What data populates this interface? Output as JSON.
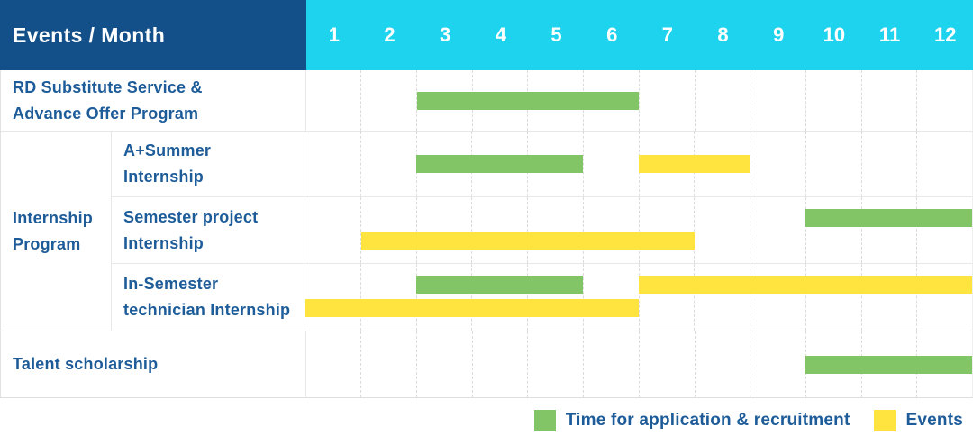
{
  "header": {
    "title": "Events / Month",
    "months": [
      "1",
      "2",
      "3",
      "4",
      "5",
      "6",
      "7",
      "8",
      "9",
      "10",
      "11",
      "12"
    ]
  },
  "colors": {
    "header_bg": "#134f88",
    "month_header_bg": "#1ed3ee",
    "application_bar": "#82c566",
    "events_bar": "#ffe33e",
    "label_text": "#1d5c99"
  },
  "legend": [
    {
      "key": "application",
      "label": "Time for application & recruitment"
    },
    {
      "key": "events",
      "label": "Events"
    }
  ],
  "chart_data": {
    "type": "bar",
    "subtype": "gantt-schedule",
    "title": "Events / Month",
    "x_axis": {
      "label": "Month",
      "ticks": [
        1,
        2,
        3,
        4,
        5,
        6,
        7,
        8,
        9,
        10,
        11,
        12
      ],
      "range": [
        1,
        12
      ]
    },
    "legend_entries": [
      "Time for application & recruitment",
      "Events"
    ],
    "group_label_lines": [
      "Internship",
      "Program"
    ],
    "rows": [
      {
        "group": "",
        "label": "RD Substitute Service & Advance Offer Program",
        "label_lines": [
          "RD Substitute Service &",
          "Advance Offer Program"
        ],
        "bars": [
          {
            "series": "application",
            "start_month": 3,
            "end_month": 6,
            "lane": "middle"
          }
        ]
      },
      {
        "group": "Internship Program",
        "label": "A+Summer Internship",
        "label_lines": [
          "A+Summer",
          "Internship"
        ],
        "bars": [
          {
            "series": "application",
            "start_month": 3,
            "end_month": 5,
            "lane": "middle"
          },
          {
            "series": "events",
            "start_month": 7,
            "end_month": 8,
            "lane": "middle"
          }
        ]
      },
      {
        "group": "Internship Program",
        "label": "Semester project Internship",
        "label_lines": [
          "Semester project",
          "Internship"
        ],
        "bars": [
          {
            "series": "application",
            "start_month": 10,
            "end_month": 12,
            "lane": "top"
          },
          {
            "series": "events",
            "start_month": 2,
            "end_month": 7,
            "lane": "bottom"
          }
        ]
      },
      {
        "group": "Internship Program",
        "label": "In-Semester technician Internship",
        "label_lines": [
          "In-Semester",
          "technician Internship"
        ],
        "bars": [
          {
            "series": "application",
            "start_month": 3,
            "end_month": 5,
            "lane": "top"
          },
          {
            "series": "events",
            "start_month": 7,
            "end_month": 12,
            "lane": "top"
          },
          {
            "series": "events",
            "start_month": 1,
            "end_month": 6,
            "lane": "bottom"
          }
        ]
      },
      {
        "group": "",
        "label": "Talent scholarship",
        "label_lines": [
          "Talent scholarship"
        ],
        "bars": [
          {
            "series": "application",
            "start_month": 10,
            "end_month": 12,
            "lane": "middle"
          }
        ]
      }
    ]
  }
}
